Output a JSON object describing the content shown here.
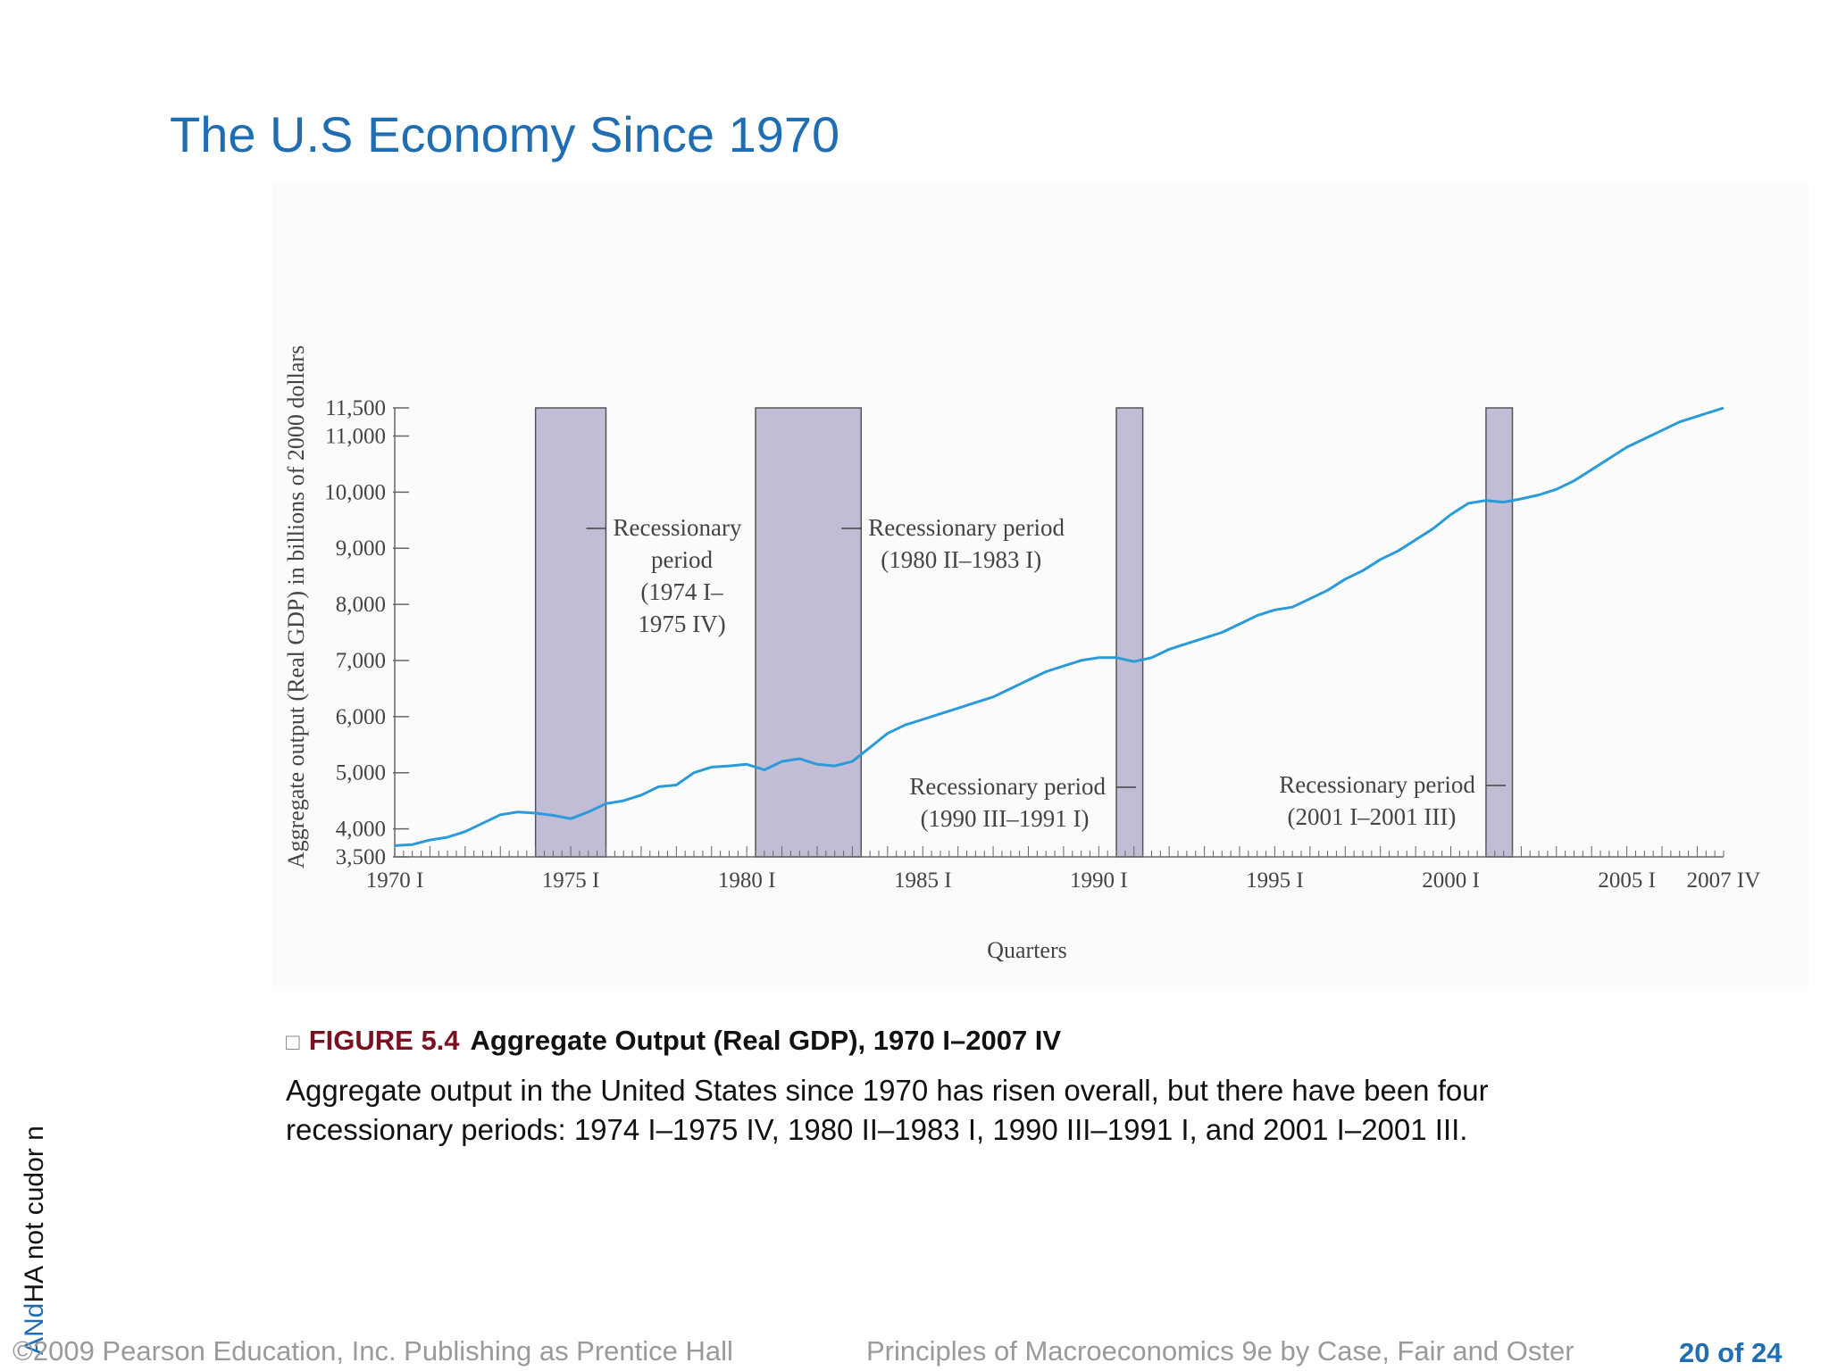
{
  "slide": {
    "title": "The U.S Economy Since 1970"
  },
  "caption": {
    "figure_number": "FIGURE 5.4",
    "figure_title": "Aggregate Output (Real GDP), 1970 I–2007 IV",
    "line1": "Aggregate output in the United States since 1970 has risen overall, but there have been four",
    "line2": "recessionary periods:  1974 I–1975 IV, 1980 II–1983 I, 1990 III–1991 I, and 2001 I–2001 III."
  },
  "side_text": {
    "blue_part": "ANd",
    "black_part": "HA  not cudor n"
  },
  "footer": {
    "copyright": "©2009 Pearson Education, Inc. Publishing as Prentice Hall",
    "book": "Principles of Macroeconomics 9e by Case, Fair and Oster",
    "page": "20 of 24"
  },
  "colors": {
    "title": "#1f6db3",
    "line": "#2a9ad8",
    "recession_fill": "#c2bdd6",
    "figure_number": "#7a1020",
    "footer": "#9a9a9a"
  },
  "chart_data": {
    "type": "line",
    "title": "",
    "xlabel": "Quarters",
    "ylabel": "Aggregate output (Real GDP) in billions of 2000 dollars",
    "ylim": [
      3500,
      11500
    ],
    "xlim": [
      1970.0,
      2007.75
    ],
    "y_ticks": [
      3500,
      4000,
      5000,
      6000,
      7000,
      8000,
      9000,
      10000,
      11000,
      11500
    ],
    "y_tick_labels": [
      "3,500",
      "4,000",
      "5,000",
      "6,000",
      "7,000",
      "8,000",
      "9,000",
      "10,000",
      "11,000",
      "11,500"
    ],
    "x_ticks": [
      1970,
      1975,
      1980,
      1985,
      1990,
      1995,
      2000,
      2005,
      2007.75
    ],
    "x_tick_labels": [
      "1970 I",
      "1975 I",
      "1980 I",
      "1985 I",
      "1990 I",
      "1995 I",
      "2000 I",
      "2005 I",
      "2007 IV"
    ],
    "grid": false,
    "legend": "none",
    "series": [
      {
        "x": [
          1970.0,
          1970.5,
          1971.0,
          1971.5,
          1972.0,
          1972.5,
          1973.0,
          1973.5,
          1974.0,
          1974.5,
          1975.0,
          1975.5,
          1976.0,
          1976.5,
          1977.0,
          1977.5,
          1978.0,
          1978.5,
          1979.0,
          1979.5,
          1980.0,
          1980.5,
          1981.0,
          1981.5,
          1982.0,
          1982.5,
          1983.0,
          1983.5,
          1984.0,
          1984.5,
          1985.0,
          1985.5,
          1986.0,
          1986.5,
          1987.0,
          1987.5,
          1988.0,
          1988.5,
          1989.0,
          1989.5,
          1990.0,
          1990.5,
          1991.0,
          1991.5,
          1992.0,
          1992.5,
          1993.0,
          1993.5,
          1994.0,
          1994.5,
          1995.0,
          1995.5,
          1996.0,
          1996.5,
          1997.0,
          1997.5,
          1998.0,
          1998.5,
          1999.0,
          1999.5,
          2000.0,
          2000.5,
          2001.0,
          2001.5,
          2002.0,
          2002.5,
          2003.0,
          2003.5,
          2004.0,
          2004.5,
          2005.0,
          2005.5,
          2006.0,
          2006.5,
          2007.0,
          2007.75
        ],
        "y": [
          3700,
          3720,
          3800,
          3850,
          3950,
          4100,
          4250,
          4300,
          4280,
          4240,
          4180,
          4300,
          4450,
          4500,
          4600,
          4750,
          4780,
          5000,
          5100,
          5120,
          5150,
          5050,
          5200,
          5250,
          5150,
          5120,
          5200,
          5450,
          5700,
          5850,
          5950,
          6050,
          6150,
          6250,
          6350,
          6500,
          6650,
          6800,
          6900,
          7000,
          7050,
          7050,
          6980,
          7050,
          7200,
          7300,
          7400,
          7500,
          7650,
          7800,
          7900,
          7950,
          8100,
          8250,
          8450,
          8600,
          8800,
          8950,
          9150,
          9350,
          9600,
          9800,
          9850,
          9820,
          9880,
          9950,
          10050,
          10200,
          10400,
          10600,
          10800,
          10950,
          11100,
          11250,
          11350,
          11500
        ]
      }
    ],
    "recessions": [
      {
        "start": 1974.0,
        "end": 1976.0
      },
      {
        "start": 1980.25,
        "end": 1983.25
      },
      {
        "start": 1990.5,
        "end": 1991.25
      },
      {
        "start": 2001.0,
        "end": 2001.75
      }
    ],
    "annotations": [
      {
        "lines": [
          "Recessionary",
          "period",
          "(1974 I–",
          "1975 IV)"
        ]
      },
      {
        "lines": [
          "Recessionary period",
          "(1980 II–1983 I)"
        ]
      },
      {
        "lines": [
          "Recessionary period",
          "(1990 III–1991 I)"
        ]
      },
      {
        "lines": [
          "Recessionary period",
          "(2001 I–2001 III)"
        ]
      }
    ]
  }
}
